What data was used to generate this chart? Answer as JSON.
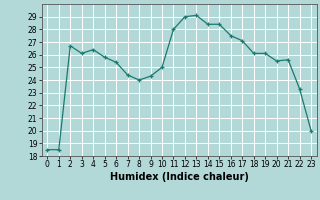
{
  "x": [
    0,
    1,
    2,
    3,
    4,
    5,
    6,
    7,
    8,
    9,
    10,
    11,
    12,
    13,
    14,
    15,
    16,
    17,
    18,
    19,
    20,
    21,
    22,
    23
  ],
  "y": [
    18.5,
    18.5,
    26.7,
    26.1,
    26.4,
    25.8,
    25.4,
    24.4,
    24.0,
    24.3,
    25.0,
    28.0,
    29.0,
    29.1,
    28.4,
    28.4,
    27.5,
    27.1,
    26.1,
    26.1,
    25.5,
    25.6,
    23.3,
    20.0
  ],
  "line_color": "#1a7a6e",
  "marker": "+",
  "marker_size": 3,
  "bg_color": "#b2d8d8",
  "grid_color": "#ffffff",
  "xlabel": "Humidex (Indice chaleur)",
  "ylim": [
    18,
    30
  ],
  "xlim": [
    -0.5,
    23.5
  ],
  "yticks": [
    18,
    19,
    20,
    21,
    22,
    23,
    24,
    25,
    26,
    27,
    28,
    29
  ],
  "xticks": [
    0,
    1,
    2,
    3,
    4,
    5,
    6,
    7,
    8,
    9,
    10,
    11,
    12,
    13,
    14,
    15,
    16,
    17,
    18,
    19,
    20,
    21,
    22,
    23
  ],
  "title_fontsize": 7,
  "label_fontsize": 7,
  "tick_fontsize": 5.5
}
